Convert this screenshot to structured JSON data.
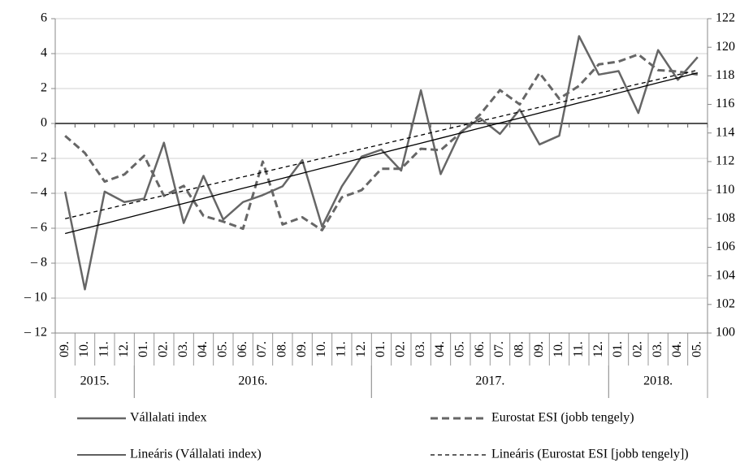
{
  "chart_data": {
    "type": "line",
    "categories": [
      "09.",
      "10.",
      "11.",
      "12.",
      "01.",
      "02.",
      "03.",
      "04.",
      "05.",
      "06.",
      "07.",
      "08.",
      "09.",
      "10.",
      "11.",
      "12.",
      "01.",
      "02.",
      "03.",
      "04.",
      "05.",
      "06.",
      "07.",
      "08.",
      "09.",
      "10.",
      "11.",
      "12.",
      "01.",
      "02.",
      "03.",
      "04.",
      "05."
    ],
    "groups": [
      {
        "label": "2015.",
        "count": 4
      },
      {
        "label": "2016.",
        "count": 12
      },
      {
        "label": "2017.",
        "count": 12
      },
      {
        "label": "2018.",
        "count": 5
      }
    ],
    "series": [
      {
        "name": "Vállalati index",
        "color": "#666666",
        "dashed": false,
        "values": [
          -3.9,
          -9.5,
          -3.9,
          -4.5,
          -4.3,
          -1.1,
          -5.7,
          -3.0,
          -5.5,
          -4.5,
          -4.1,
          -3.6,
          -2.1,
          -5.9,
          -3.6,
          -1.9,
          -1.5,
          -2.7,
          1.9,
          -2.9,
          -0.5,
          0.3,
          -0.6,
          0.8,
          -1.2,
          -0.7,
          5.0,
          2.8,
          3.0,
          0.6,
          4.2,
          2.5,
          3.8
        ]
      },
      {
        "name": "Eurostat ESI (jobb tengely)",
        "color": "#666666",
        "dashed": true,
        "axis": "y2",
        "values": [
          113.8,
          112.6,
          110.6,
          111.1,
          112.4,
          109.6,
          110.3,
          108.2,
          107.8,
          107.3,
          112.0,
          107.6,
          108.1,
          107.2,
          109.5,
          110.0,
          111.5,
          111.5,
          112.9,
          112.8,
          114.0,
          115.3,
          117.0,
          116.0,
          118.2,
          116.4,
          117.3,
          118.8,
          119.0,
          119.5,
          118.4,
          118.3,
          118.1
        ]
      },
      {
        "name": "Lineáris (Vállalati index)",
        "color": "#000000",
        "dashed": false,
        "values": [
          -6.3,
          -6.01,
          -5.73,
          -5.44,
          -5.15,
          -4.86,
          -4.58,
          -4.29,
          -4.0,
          -3.71,
          -3.43,
          -3.14,
          -2.85,
          -2.56,
          -2.28,
          -1.99,
          -1.7,
          -1.41,
          -1.13,
          -0.84,
          -0.55,
          -0.26,
          0.03,
          0.31,
          0.6,
          0.89,
          1.18,
          1.46,
          1.75,
          2.04,
          2.33,
          2.61,
          2.9
        ]
      },
      {
        "name": "Lineáris (Eurostat ESI [jobb tengely])",
        "color": "#000000",
        "dashed": true,
        "axis": "y2",
        "values": [
          108.0,
          108.33,
          108.65,
          108.98,
          109.3,
          109.63,
          109.95,
          110.28,
          110.6,
          110.93,
          111.25,
          111.58,
          111.9,
          112.23,
          112.55,
          112.88,
          113.2,
          113.53,
          113.85,
          114.18,
          114.5,
          114.83,
          115.15,
          115.48,
          115.8,
          116.13,
          116.45,
          116.78,
          117.1,
          117.43,
          117.75,
          118.08,
          118.4
        ]
      }
    ],
    "ylim": [
      -12,
      6
    ],
    "yticks": [
      {
        "value": -12,
        "label": "– 12"
      },
      {
        "value": -10,
        "label": "– 10"
      },
      {
        "value": -8,
        "label": "– 8"
      },
      {
        "value": -6,
        "label": "– 6"
      },
      {
        "value": -4,
        "label": "– 4"
      },
      {
        "value": -2,
        "label": "– 2"
      },
      0,
      2,
      4,
      6
    ],
    "y2lim": [
      100,
      122
    ],
    "y2ticks": [
      100,
      102,
      104,
      106,
      108,
      110,
      112,
      114,
      116,
      118,
      120,
      122
    ],
    "grid": true
  }
}
